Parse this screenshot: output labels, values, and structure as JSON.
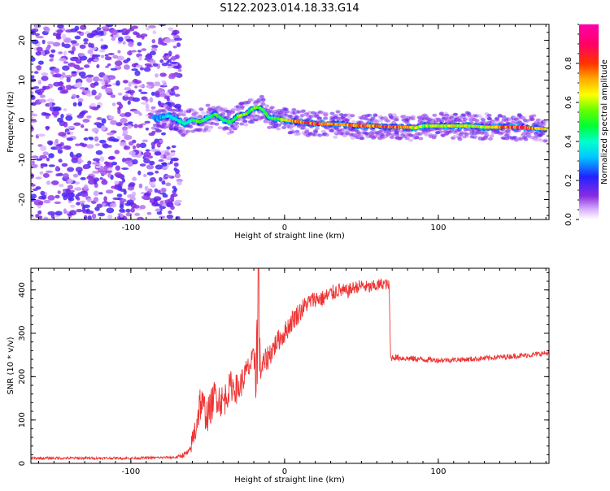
{
  "title": "S122.2023.014.18.33.G14",
  "chart_data": [
    {
      "type": "heatmap",
      "title": "S122.2023.014.18.33.G14",
      "xlabel": "Height of straight line (km)",
      "ylabel": "Frequency (Hz)",
      "xlim": [
        -165,
        172
      ],
      "ylim": [
        -25,
        24
      ],
      "xticks": [
        -100,
        0,
        100
      ],
      "yticks": [
        -20,
        -10,
        0,
        10,
        20
      ],
      "colorbar": {
        "label": "Normalized spectral amplitude",
        "range": [
          0,
          1
        ],
        "ticks": [
          0.0,
          0.2,
          0.4,
          0.6,
          0.8
        ],
        "tick_labels": [
          "0.0",
          "0.2",
          "0.4",
          "0.6",
          "0.8"
        ],
        "colormap": "gist_ncar-like (purple-blue-cyan-green-yellow-red-magenta)"
      },
      "noise_region": {
        "x_range": [
          -165,
          -72
        ],
        "y_range": [
          -25,
          24
        ],
        "amplitude": "low (0.05-0.2)"
      },
      "ridge": {
        "x": [
          -82,
          -75,
          -70,
          -65,
          -60,
          -55,
          -50,
          -45,
          -40,
          -35,
          -30,
          -25,
          -20,
          -17,
          -14,
          -10,
          -5,
          0,
          10,
          20,
          30,
          40,
          50,
          60,
          70,
          80,
          85,
          90,
          100,
          110,
          120,
          130,
          140,
          150,
          160,
          170
        ],
        "y": [
          0.5,
          1.0,
          0.0,
          -1.0,
          0.0,
          -0.5,
          0.5,
          1.5,
          0.0,
          -0.5,
          1.0,
          1.5,
          3.0,
          3.2,
          2.5,
          0.5,
          0.3,
          0.0,
          -0.5,
          -1.0,
          -1.0,
          -1.2,
          -1.5,
          -1.5,
          -1.8,
          -1.8,
          -2.0,
          -1.5,
          -1.5,
          -1.5,
          -1.5,
          -1.8,
          -1.8,
          -1.8,
          -2.0,
          -2.3
        ],
        "amplitude": [
          0.3,
          0.4,
          0.45,
          0.45,
          0.5,
          0.55,
          0.5,
          0.55,
          0.55,
          0.5,
          0.6,
          0.6,
          0.6,
          0.6,
          0.55,
          0.5,
          0.6,
          0.7,
          0.85,
          0.9,
          0.85,
          0.8,
          0.85,
          0.85,
          0.9,
          0.8,
          0.7,
          0.65,
          0.65,
          0.7,
          0.65,
          0.7,
          0.8,
          0.9,
          0.85,
          0.7
        ]
      },
      "grid": false
    },
    {
      "type": "line",
      "xlabel": "Height of straight line (km)",
      "ylabel": "SNR (10 * v/v)",
      "xlim": [
        -165,
        172
      ],
      "ylim": [
        0,
        450
      ],
      "xticks": [
        -100,
        0,
        100
      ],
      "yticks": [
        0,
        100,
        200,
        300,
        400
      ],
      "color": "#ee3333",
      "series": [
        {
          "x": [
            -165,
            -100,
            -70,
            -62,
            -58,
            -55,
            -50,
            -45,
            -40,
            -35,
            -30,
            -25,
            -20,
            -18,
            -15,
            -10,
            -5,
            0,
            5,
            10,
            15,
            20,
            25,
            30,
            35,
            40,
            45,
            50,
            55,
            60,
            65,
            68,
            69,
            70,
            80,
            100,
            120,
            140,
            160,
            172
          ],
          "y": [
            12,
            12,
            14,
            25,
            80,
            140,
            110,
            160,
            140,
            180,
            170,
            210,
            240,
            250,
            220,
            250,
            280,
            300,
            330,
            350,
            370,
            380,
            380,
            390,
            400,
            395,
            405,
            410,
            405,
            410,
            415,
            410,
            240,
            245,
            242,
            238,
            240,
            245,
            250,
            255
          ],
          "noise_amplitude": [
            6,
            6,
            6,
            20,
            80,
            90,
            80,
            80,
            80,
            70,
            70,
            60,
            60,
            300,
            60,
            60,
            50,
            50,
            50,
            50,
            40,
            40,
            40,
            40,
            35,
            35,
            30,
            30,
            30,
            30,
            25,
            25,
            20,
            15,
            15,
            12,
            12,
            12,
            12,
            12
          ]
        }
      ],
      "grid": false
    }
  ]
}
